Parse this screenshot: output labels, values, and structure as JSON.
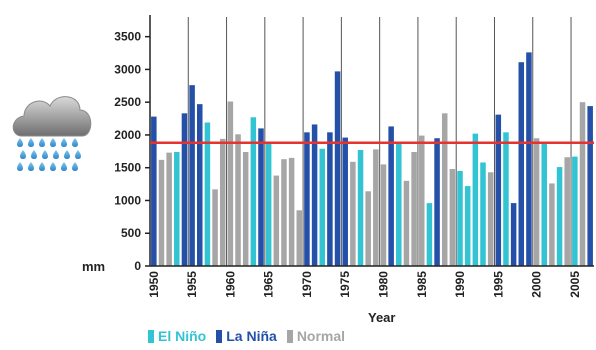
{
  "chart_data": {
    "type": "bar",
    "xlabel": "Year",
    "ylabel": "mm",
    "ylim": [
      0,
      3800
    ],
    "yticks": [
      0,
      500,
      1000,
      1500,
      2000,
      2500,
      3000,
      3500
    ],
    "xticks": [
      1950,
      1955,
      1960,
      1965,
      1970,
      1975,
      1980,
      1985,
      1990,
      1995,
      2000,
      2005
    ],
    "reference_line": 1880,
    "grid": "vertical lines at each labeled year",
    "legend_position": "bottom",
    "colors": {
      "elnino": "#33c4d4",
      "lanina": "#2450a8",
      "normal": "#a6a6a6",
      "reference": "#e3342f"
    },
    "series": [
      {
        "key": "elnino",
        "name": "El Niño"
      },
      {
        "key": "lanina",
        "name": "La Niña"
      },
      {
        "key": "normal",
        "name": "Normal"
      }
    ],
    "data": [
      {
        "year": 1950,
        "value": 2280,
        "type": "lanina"
      },
      {
        "year": 1951,
        "value": 1620,
        "type": "normal"
      },
      {
        "year": 1952,
        "value": 1730,
        "type": "normal"
      },
      {
        "year": 1953,
        "value": 1740,
        "type": "elnino"
      },
      {
        "year": 1954,
        "value": 2330,
        "type": "lanina"
      },
      {
        "year": 1955,
        "value": 2760,
        "type": "lanina"
      },
      {
        "year": 1956,
        "value": 2470,
        "type": "lanina"
      },
      {
        "year": 1957,
        "value": 2190,
        "type": "elnino"
      },
      {
        "year": 1958,
        "value": 1170,
        "type": "normal"
      },
      {
        "year": 1959,
        "value": 1940,
        "type": "normal"
      },
      {
        "year": 1960,
        "value": 2510,
        "type": "normal"
      },
      {
        "year": 1961,
        "value": 2010,
        "type": "normal"
      },
      {
        "year": 1962,
        "value": 1740,
        "type": "normal"
      },
      {
        "year": 1963,
        "value": 2270,
        "type": "elnino"
      },
      {
        "year": 1964,
        "value": 2100,
        "type": "lanina"
      },
      {
        "year": 1965,
        "value": 1880,
        "type": "elnino"
      },
      {
        "year": 1966,
        "value": 1380,
        "type": "normal"
      },
      {
        "year": 1967,
        "value": 1630,
        "type": "normal"
      },
      {
        "year": 1968,
        "value": 1650,
        "type": "normal"
      },
      {
        "year": 1969,
        "value": 850,
        "type": "normal"
      },
      {
        "year": 1970,
        "value": 2040,
        "type": "lanina"
      },
      {
        "year": 1971,
        "value": 2160,
        "type": "lanina"
      },
      {
        "year": 1972,
        "value": 1790,
        "type": "elnino"
      },
      {
        "year": 1973,
        "value": 2040,
        "type": "lanina"
      },
      {
        "year": 1974,
        "value": 2970,
        "type": "lanina"
      },
      {
        "year": 1975,
        "value": 1960,
        "type": "lanina"
      },
      {
        "year": 1976,
        "value": 1590,
        "type": "normal"
      },
      {
        "year": 1977,
        "value": 1770,
        "type": "elnino"
      },
      {
        "year": 1978,
        "value": 1140,
        "type": "normal"
      },
      {
        "year": 1979,
        "value": 1780,
        "type": "normal"
      },
      {
        "year": 1980,
        "value": 1550,
        "type": "normal"
      },
      {
        "year": 1981,
        "value": 2130,
        "type": "lanina"
      },
      {
        "year": 1982,
        "value": 1870,
        "type": "elnino"
      },
      {
        "year": 1983,
        "value": 1300,
        "type": "normal"
      },
      {
        "year": 1984,
        "value": 1740,
        "type": "normal"
      },
      {
        "year": 1985,
        "value": 1990,
        "type": "normal"
      },
      {
        "year": 1986,
        "value": 960,
        "type": "elnino"
      },
      {
        "year": 1987,
        "value": 1950,
        "type": "lanina"
      },
      {
        "year": 1988,
        "value": 2330,
        "type": "normal"
      },
      {
        "year": 1989,
        "value": 1480,
        "type": "normal"
      },
      {
        "year": 1990,
        "value": 1450,
        "type": "elnino"
      },
      {
        "year": 1991,
        "value": 1220,
        "type": "elnino"
      },
      {
        "year": 1992,
        "value": 2020,
        "type": "elnino"
      },
      {
        "year": 1993,
        "value": 1580,
        "type": "elnino"
      },
      {
        "year": 1994,
        "value": 1430,
        "type": "normal"
      },
      {
        "year": 1995,
        "value": 2310,
        "type": "lanina"
      },
      {
        "year": 1996,
        "value": 2040,
        "type": "elnino"
      },
      {
        "year": 1997,
        "value": 960,
        "type": "lanina"
      },
      {
        "year": 1998,
        "value": 3110,
        "type": "lanina"
      },
      {
        "year": 1999,
        "value": 3260,
        "type": "lanina"
      },
      {
        "year": 2000,
        "value": 1950,
        "type": "normal"
      },
      {
        "year": 2001,
        "value": 1880,
        "type": "elnino"
      },
      {
        "year": 2002,
        "value": 1260,
        "type": "normal"
      },
      {
        "year": 2003,
        "value": 1510,
        "type": "elnino"
      },
      {
        "year": 2004,
        "value": 1660,
        "type": "normal"
      },
      {
        "year": 2005,
        "value": 1670,
        "type": "elnino"
      },
      {
        "year": 2006,
        "value": 2500,
        "type": "normal"
      },
      {
        "year": 2007,
        "value": 2440,
        "type": "lanina"
      }
    ]
  },
  "icons": {
    "weather": "rain-cloud-icon"
  }
}
